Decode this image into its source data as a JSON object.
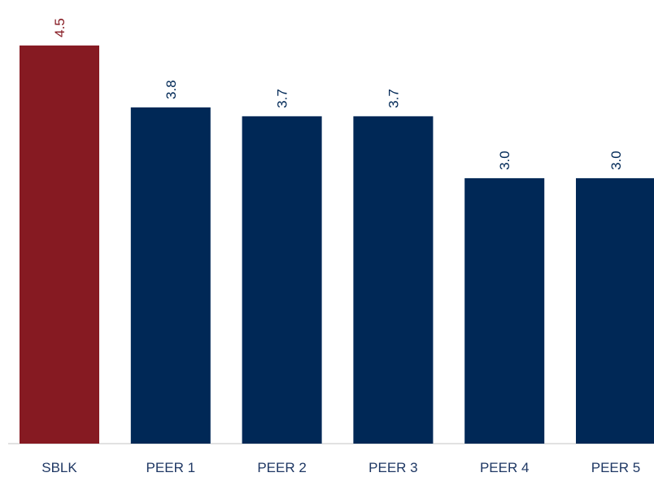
{
  "chart_data": {
    "type": "bar",
    "categories": [
      "SBLK",
      "PEER 1",
      "PEER 2",
      "PEER 3",
      "PEER 4",
      "PEER 5"
    ],
    "values": [
      4.5,
      3.8,
      3.7,
      3.7,
      3.0,
      3.0
    ],
    "value_labels": [
      "4.5",
      "3.8",
      "3.7",
      "3.7",
      "3.0",
      "3.0"
    ],
    "bar_colors": [
      "#861a22",
      "#002856",
      "#002856",
      "#002856",
      "#002856",
      "#002856"
    ],
    "label_colors": [
      "#861a22",
      "#002856",
      "#002856",
      "#002856",
      "#002856",
      "#002856"
    ],
    "title": "",
    "xlabel": "",
    "ylabel": "",
    "ylim": [
      0,
      4.6
    ],
    "grid": false,
    "legend": "none",
    "data_label_orientation": "vertical"
  },
  "colors": {
    "highlight": "#861a22",
    "peer": "#002856",
    "axis": "#d9d9d9",
    "category_text": "#1f3864"
  }
}
